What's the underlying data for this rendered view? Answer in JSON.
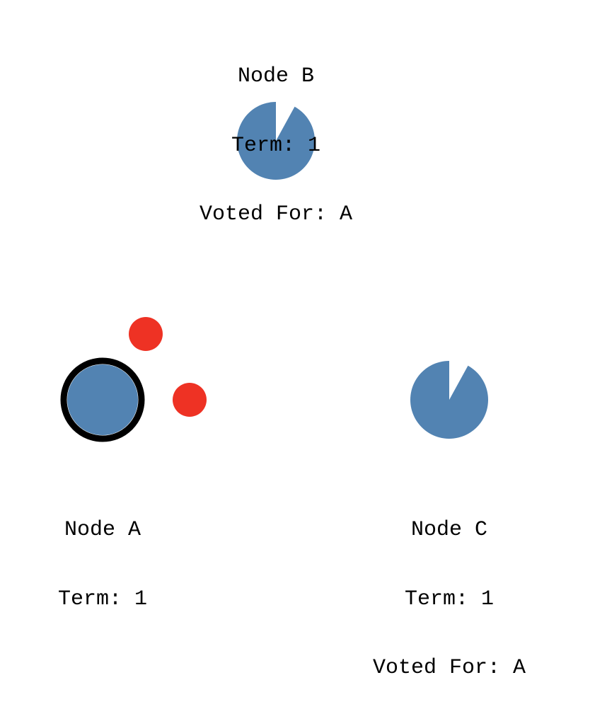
{
  "colors": {
    "node_fill": "#5283b2",
    "leader_ring": "#000000",
    "message": "#ee3224",
    "background": "#ffffff"
  },
  "nodes": {
    "a": {
      "name": "Node A",
      "term": "Term: 1",
      "role": "leader"
    },
    "b": {
      "name": "Node B",
      "term": "Term: 1",
      "voted_for": "Voted For: A",
      "role": "follower",
      "election_timer_remaining": 0.92
    },
    "c": {
      "name": "Node C",
      "term": "Term: 1",
      "voted_for": "Voted For: A",
      "role": "follower",
      "election_timer_remaining": 0.92
    }
  },
  "messages": [
    {
      "from": "a",
      "to": "b",
      "kind": "message"
    },
    {
      "from": "a",
      "to": "c",
      "kind": "message"
    }
  ]
}
